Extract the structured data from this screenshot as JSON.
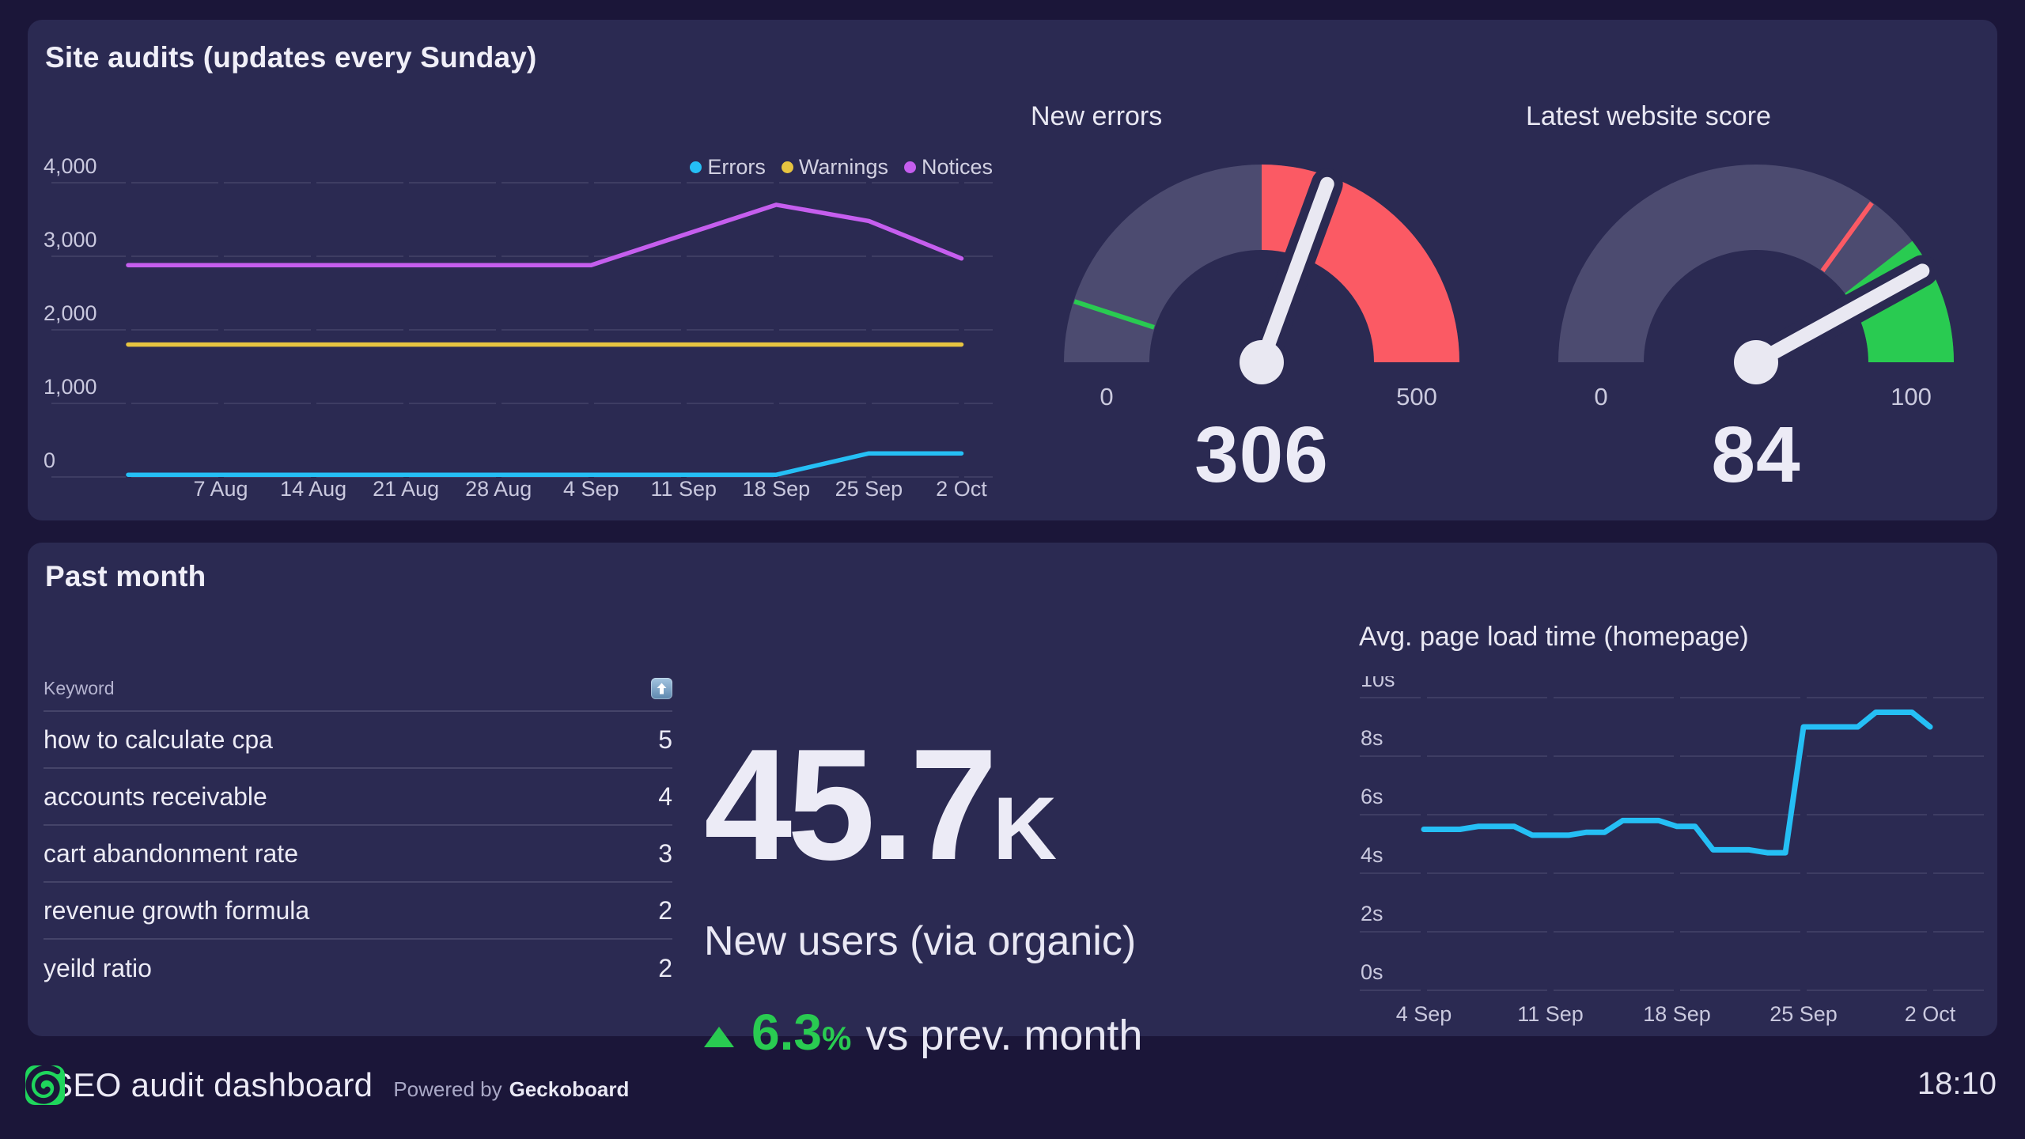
{
  "page": {
    "time": "18:10",
    "footer": {
      "title": "SEO audit dashboard",
      "powered_by": "Powered by",
      "brand": "Geckoboard"
    }
  },
  "colors": {
    "background": "#1b1639",
    "panel": "#2b2a52",
    "grid": "#3e3d63",
    "axis_text": "#c9c8de",
    "text_bright": "#ecebf5",
    "text_dim": "#b5b4d0",
    "cyan": "#25bff5",
    "yellow": "#e7c440",
    "purple": "#c55eee",
    "red": "#fb5a64",
    "green": "#29cb51",
    "slate_arc": "#4c4b70",
    "needle": "#e9e8f2",
    "logo_green": "#1fd65c"
  },
  "site_audits": {
    "title": "Site audits (updates every Sunday)",
    "gauge_new_errors": {
      "title": "New errors",
      "min_label": "0",
      "max_label": "500",
      "value_label": "306"
    },
    "gauge_website_score": {
      "title": "Latest website score",
      "min_label": "0",
      "max_label": "100",
      "value_label": "84"
    }
  },
  "past_month": {
    "title": "Past month",
    "keyword_table": {
      "header": "Keyword",
      "sort_icon": "sort-ascending-icon",
      "rows": [
        {
          "keyword": "how to calculate cpa",
          "value": "5"
        },
        {
          "keyword": "accounts receivable",
          "value": "4"
        },
        {
          "keyword": "cart abandonment rate",
          "value": "3"
        },
        {
          "keyword": "revenue growth formula",
          "value": "2"
        },
        {
          "keyword": "yeild ratio",
          "value": "2"
        }
      ]
    },
    "big_number": {
      "value": "45.7",
      "unit": "K",
      "label": "New users (via organic)",
      "delta_direction": "up",
      "delta_value": "6.3",
      "delta_unit": "%",
      "delta_suffix": "vs prev. month"
    }
  },
  "chart_data": [
    {
      "id": "site-audits-lines",
      "type": "line",
      "title": "Site audits (updates every Sunday)",
      "x_labels": [
        "7 Aug",
        "14 Aug",
        "21 Aug",
        "28 Aug",
        "4 Sep",
        "11 Sep",
        "18 Sep",
        "25 Sep",
        "2 Oct"
      ],
      "x_note": "weekly points; series begin one week before the first labelled tick",
      "ylim": [
        0,
        4000
      ],
      "y_ticks": [
        {
          "label": "4,000",
          "value": 4000
        },
        {
          "label": "3,000",
          "value": 3000
        },
        {
          "label": "2,000",
          "value": 2000
        },
        {
          "label": "1,000",
          "value": 1000
        },
        {
          "label": "0",
          "value": 0
        }
      ],
      "grid": true,
      "legend_position": "top-right",
      "series": [
        {
          "name": "Errors",
          "color": "#25bff5",
          "values": [
            30,
            30,
            30,
            30,
            30,
            30,
            30,
            30,
            320,
            320
          ]
        },
        {
          "name": "Warnings",
          "color": "#e7c440",
          "values": [
            1800,
            1800,
            1800,
            1800,
            1800,
            1800,
            1800,
            1800,
            1800,
            1800
          ]
        },
        {
          "name": "Notices",
          "color": "#c55eee",
          "values": [
            2880,
            2880,
            2880,
            2880,
            2880,
            2880,
            3290,
            3700,
            3480,
            2970
          ]
        }
      ]
    },
    {
      "id": "new-errors-gauge",
      "type": "gauge",
      "title": "New errors",
      "min": 0,
      "max": 500,
      "value": 306,
      "zones": [
        {
          "from": 0,
          "to": 250,
          "color": "slate"
        },
        {
          "from": 250,
          "to": 500,
          "color": "red"
        }
      ],
      "threshold_tick": {
        "value": 50,
        "color": "green"
      }
    },
    {
      "id": "website-score-gauge",
      "type": "gauge",
      "title": "Latest website score",
      "min": 0,
      "max": 100,
      "value": 84,
      "zones": [
        {
          "from": 0,
          "to": 79,
          "color": "slate"
        },
        {
          "from": 79,
          "to": 100,
          "color": "green"
        }
      ],
      "threshold_tick": {
        "value": 70,
        "color": "red"
      }
    },
    {
      "id": "keyword-table",
      "type": "table",
      "columns": [
        "Keyword",
        ""
      ],
      "rows": [
        [
          "how to calculate cpa",
          5
        ],
        [
          "accounts receivable",
          4
        ],
        [
          "cart abandonment rate",
          3
        ],
        [
          "revenue growth formula",
          2
        ],
        [
          "yeild ratio",
          2
        ]
      ],
      "sort": "ascending"
    },
    {
      "id": "new-users-number",
      "type": "number",
      "display": "45.7K",
      "value": 45700,
      "label": "New users (via organic)",
      "delta": "+6.3% vs prev. month"
    },
    {
      "id": "page-load-time",
      "type": "line",
      "title": "Avg. page load time (homepage)",
      "x_labels": [
        "4 Sep",
        "11 Sep",
        "18 Sep",
        "25 Sep",
        "2 Oct"
      ],
      "points_per_tick": 7,
      "ylim": [
        0,
        10
      ],
      "y_ticks": [
        {
          "label": "10s",
          "value": 10
        },
        {
          "label": "8s",
          "value": 8
        },
        {
          "label": "6s",
          "value": 6
        },
        {
          "label": "4s",
          "value": 4
        },
        {
          "label": "2s",
          "value": 2
        },
        {
          "label": "0s",
          "value": 0
        }
      ],
      "grid": true,
      "series": [
        {
          "name": "Avg. page load time",
          "color": "#25bff5",
          "values": [
            5.5,
            5.5,
            5.5,
            5.6,
            5.6,
            5.6,
            5.3,
            5.3,
            5.3,
            5.4,
            5.4,
            5.8,
            5.8,
            5.8,
            5.6,
            5.6,
            4.8,
            4.8,
            4.8,
            4.7,
            4.7,
            9.0,
            9.0,
            9.0,
            9.0,
            9.5,
            9.5,
            9.5,
            9.0
          ]
        }
      ]
    }
  ]
}
